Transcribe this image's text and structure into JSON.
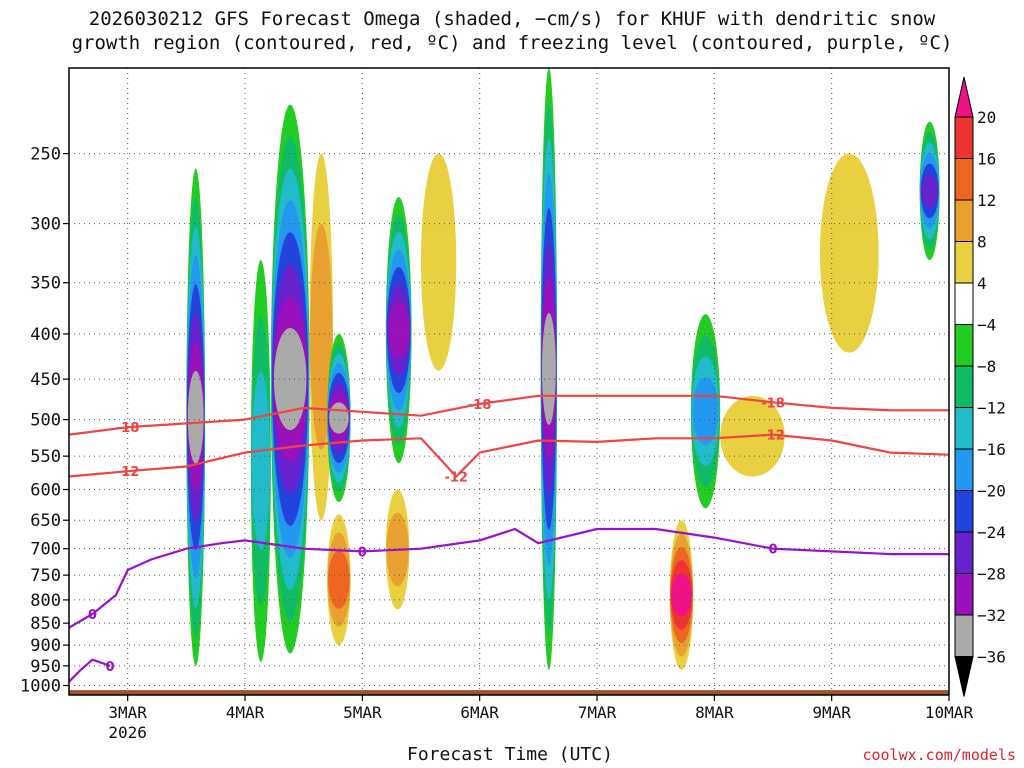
{
  "title": {
    "line1": "2026030212 GFS Forecast Omega (shaded, −cm/s) for KHUF with dendritic snow",
    "line2": "growth region (contoured, red, ºC) and freezing level (contoured, purple, ºC)"
  },
  "credit": "coolwx.com/models",
  "chart_data": {
    "type": "heatmap",
    "title": "2026030212 GFS Forecast Omega (shaded, −cm/s) for KHUF with dendritic snow growth region (contoured, red, ºC) and freezing level (contoured, purple, ºC)",
    "xlabel": "Forecast Time (UTC)",
    "ylabel": "",
    "x_range_days": [
      2.5,
      10.0
    ],
    "y_range_hpa": [
      200,
      1025
    ],
    "y_scale": "log-pressure",
    "grid": true,
    "y_ticks": [
      250,
      300,
      350,
      400,
      450,
      500,
      550,
      600,
      650,
      700,
      750,
      800,
      850,
      900,
      950,
      1000
    ],
    "x_ticks": [
      {
        "value": 3,
        "label": "3MAR",
        "sublabel": "2026"
      },
      {
        "value": 4,
        "label": "4MAR"
      },
      {
        "value": 5,
        "label": "5MAR"
      },
      {
        "value": 6,
        "label": "6MAR"
      },
      {
        "value": 7,
        "label": "7MAR"
      },
      {
        "value": 8,
        "label": "8MAR"
      },
      {
        "value": 9,
        "label": "9MAR"
      },
      {
        "value": 10,
        "label": "10MAR"
      }
    ],
    "colorbar": {
      "levels": [
        20,
        16,
        12,
        8,
        4,
        -4,
        -8,
        -12,
        -16,
        -20,
        -24,
        -28,
        -32,
        -36
      ],
      "bands": [
        {
          "range": ">20",
          "color": "#ee1188"
        },
        {
          "range": "16 to 20",
          "color": "#ee3333"
        },
        {
          "range": "12 to 16",
          "color": "#ee6622"
        },
        {
          "range": "8 to 12",
          "color": "#e8a030"
        },
        {
          "range": "4 to 8",
          "color": "#e8d040"
        },
        {
          "range": "-4 to 4",
          "color": "#ffffff"
        },
        {
          "range": "-8 to -4",
          "color": "#22cc22"
        },
        {
          "range": "-12 to -8",
          "color": "#11bb66"
        },
        {
          "range": "-16 to -12",
          "color": "#22bbcc"
        },
        {
          "range": "-20 to -16",
          "color": "#2299ee"
        },
        {
          "range": "-24 to -20",
          "color": "#2244dd"
        },
        {
          "range": "-28 to -24",
          "color": "#6622cc"
        },
        {
          "range": "-32 to -28",
          "color": "#9911bb"
        },
        {
          "range": "-36 to -32",
          "color": "#aaaaaa"
        },
        {
          "range": "<-36",
          "color": "#000000"
        }
      ]
    },
    "omega_features": [
      {
        "x0": 3.5,
        "x1": 3.66,
        "p_top": 260,
        "p_bot": 950,
        "value": -36
      },
      {
        "x0": 4.05,
        "x1": 4.22,
        "p_top": 330,
        "p_bot": 940,
        "value": -14
      },
      {
        "x0": 4.22,
        "x1": 4.55,
        "p_top": 220,
        "p_bot": 920,
        "value": -36
      },
      {
        "x0": 4.55,
        "x1": 4.75,
        "p_top": 250,
        "p_bot": 650,
        "value": 12
      },
      {
        "x0": 4.7,
        "x1": 4.9,
        "p_top": 400,
        "p_bot": 620,
        "value": -36
      },
      {
        "x0": 4.7,
        "x1": 4.9,
        "p_top": 640,
        "p_bot": 900,
        "value": 16
      },
      {
        "x0": 5.2,
        "x1": 5.42,
        "p_top": 280,
        "p_bot": 560,
        "value": -30
      },
      {
        "x0": 5.2,
        "x1": 5.4,
        "p_top": 600,
        "p_bot": 820,
        "value": 12
      },
      {
        "x0": 5.5,
        "x1": 5.8,
        "p_top": 250,
        "p_bot": 440,
        "value": 8
      },
      {
        "x0": 6.52,
        "x1": 6.66,
        "p_top": 200,
        "p_bot": 960,
        "value": -36
      },
      {
        "x0": 7.62,
        "x1": 7.82,
        "p_top": 650,
        "p_bot": 960,
        "value": 24
      },
      {
        "x0": 7.8,
        "x1": 8.05,
        "p_top": 380,
        "p_bot": 630,
        "value": -18
      },
      {
        "x0": 8.05,
        "x1": 8.6,
        "p_top": 470,
        "p_bot": 580,
        "value": 8
      },
      {
        "x0": 8.9,
        "x1": 9.4,
        "p_top": 250,
        "p_bot": 420,
        "value": 6
      },
      {
        "x0": 9.75,
        "x1": 9.92,
        "p_top": 230,
        "p_bot": 330,
        "value": -26
      }
    ],
    "series": [
      {
        "name": "-18",
        "color": "#ee4444",
        "x": [
          2.5,
          3.0,
          3.5,
          4.0,
          4.5,
          5.0,
          5.5,
          6.0,
          6.5,
          7.0,
          7.5,
          8.0,
          8.5,
          9.0,
          9.5,
          10.0
        ],
        "y": [
          520,
          510,
          505,
          500,
          485,
          490,
          495,
          480,
          470,
          470,
          470,
          470,
          478,
          485,
          488,
          488
        ]
      },
      {
        "name": "-12",
        "color": "#ee4444",
        "x": [
          2.5,
          3.0,
          3.5,
          4.0,
          4.5,
          5.0,
          5.5,
          5.8,
          6.0,
          6.5,
          7.0,
          7.5,
          8.0,
          8.5,
          9.0,
          9.5,
          10.0
        ],
        "y": [
          580,
          572,
          565,
          545,
          535,
          528,
          525,
          580,
          545,
          528,
          530,
          525,
          525,
          520,
          528,
          545,
          548
        ]
      },
      {
        "name": "0",
        "color": "#9911cc",
        "x": [
          2.5,
          2.7,
          2.9,
          3.0,
          3.2,
          3.5,
          3.8,
          4.0,
          4.5,
          5.0,
          5.5,
          6.0,
          6.3,
          6.5,
          7.0,
          7.5,
          8.0,
          8.5,
          9.0,
          9.5,
          10.0
        ],
        "y": [
          860,
          830,
          790,
          740,
          720,
          700,
          690,
          685,
          700,
          705,
          700,
          685,
          665,
          690,
          665,
          665,
          680,
          700,
          705,
          710,
          710
        ]
      },
      {
        "name": "0",
        "color": "#9911cc",
        "x": [
          2.5,
          2.6,
          2.7,
          2.85
        ],
        "y": [
          990,
          960,
          935,
          950
        ]
      }
    ]
  }
}
